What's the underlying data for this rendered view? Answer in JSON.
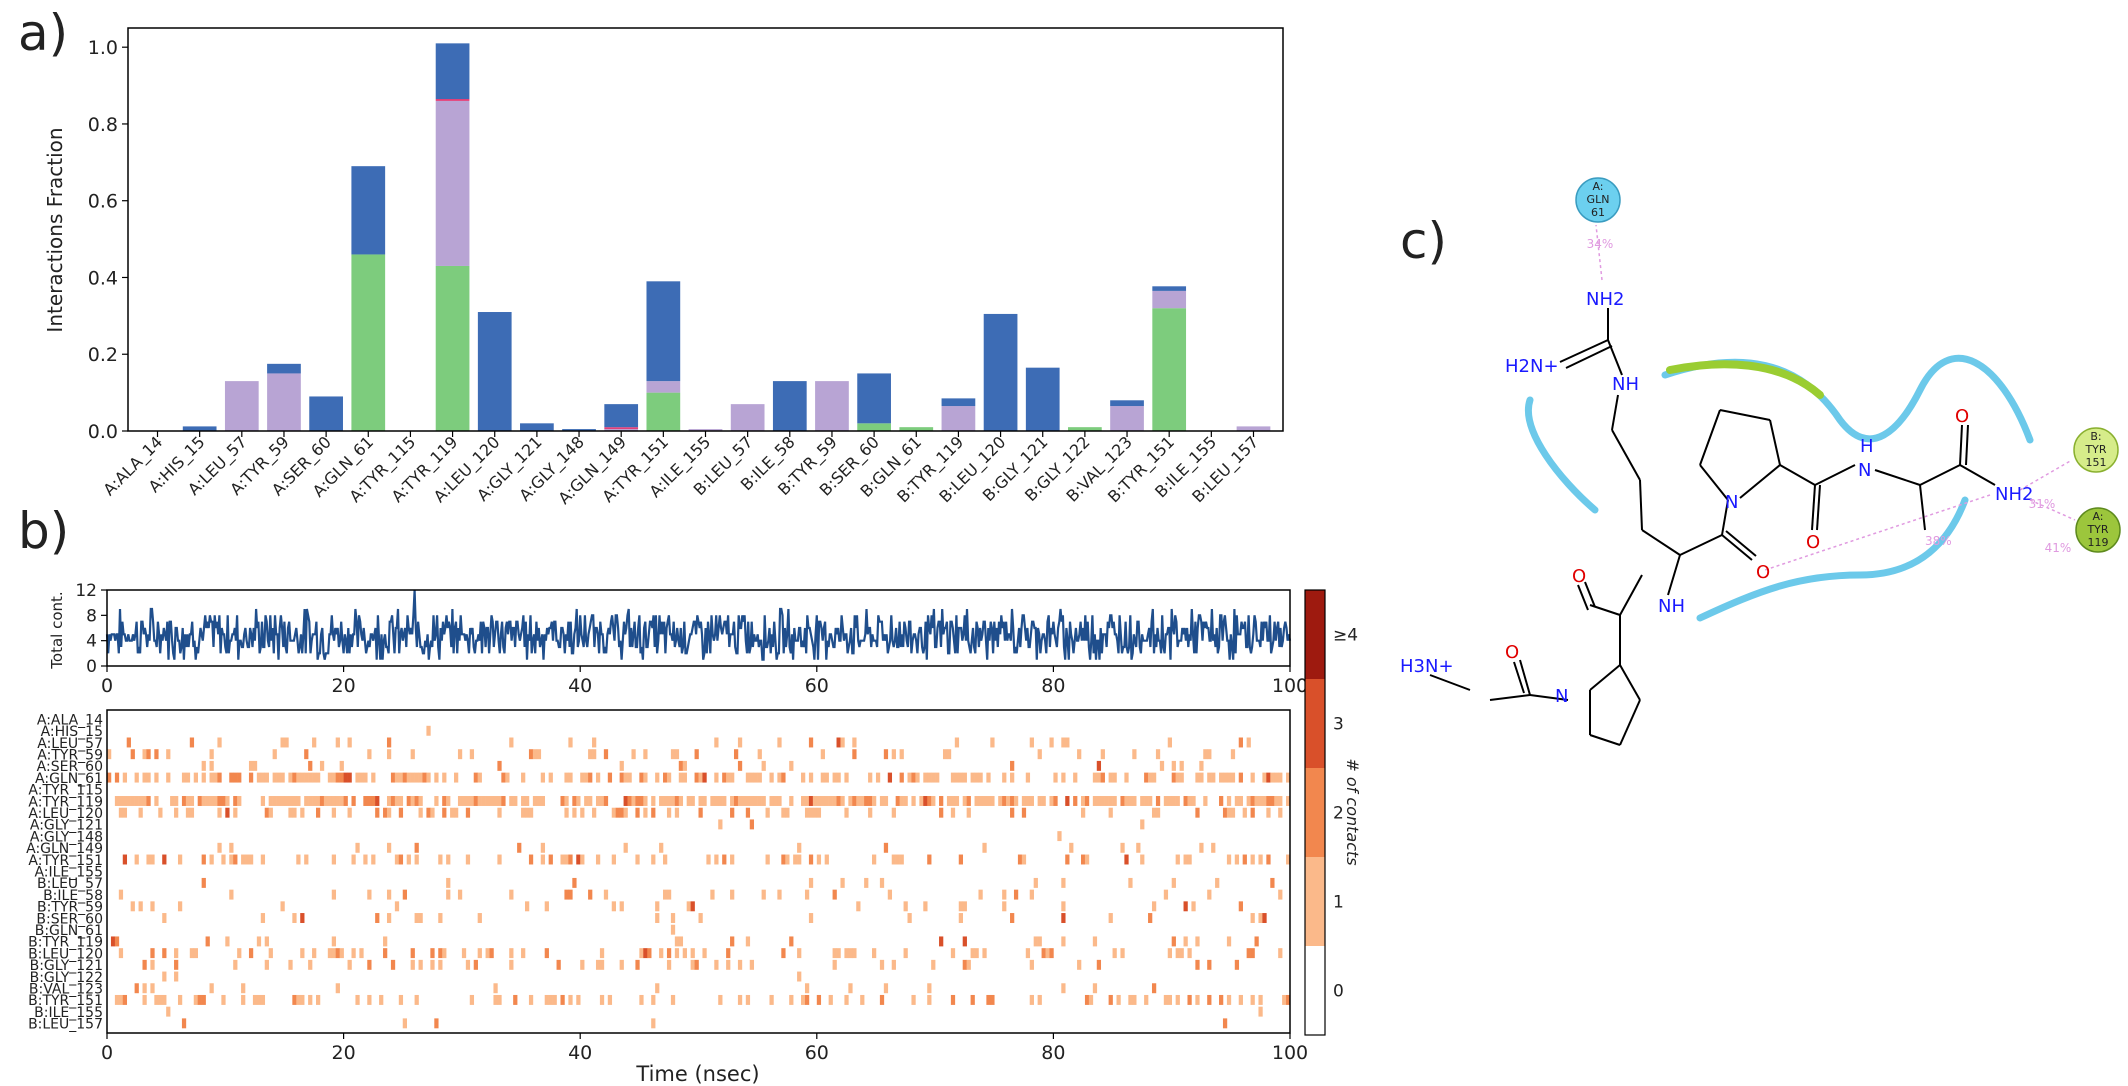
{
  "panels": {
    "a": "a)",
    "b": "b)",
    "c": "c)"
  },
  "chart_data": [
    {
      "type": "bar",
      "ylabel": "Interactions Fraction",
      "ylim": [
        0,
        1.05
      ],
      "yticks": [
        "0.0",
        "0.2",
        "0.4",
        "0.6",
        "0.8",
        "1.0"
      ],
      "categories": [
        "A:ALA_14",
        "A:HIS_15",
        "A:LEU_57",
        "A:TYR_59",
        "A:SER_60",
        "A:GLN_61",
        "A:TYR_115",
        "A:TYR_119",
        "A:LEU_120",
        "A:GLY_121",
        "A:GLY_148",
        "A:GLN_149",
        "A:TYR_151",
        "A:ILE_155",
        "B:LEU_57",
        "B:ILE_58",
        "B:TYR_59",
        "B:SER_60",
        "B:GLN_61",
        "B:TYR_119",
        "B:LEU_120",
        "B:GLY_121",
        "B:GLY_122",
        "B:VAL_123",
        "B:TYR_151",
        "B:ILE_155",
        "B:LEU_157"
      ],
      "stacked": true,
      "series": [
        {
          "color": "#7dcc7d",
          "values": [
            0,
            0,
            0,
            0,
            0,
            0.46,
            0,
            0.43,
            0,
            0,
            0,
            0,
            0.1,
            0,
            0,
            0,
            0,
            0.02,
            0.01,
            0,
            0,
            0,
            0.01,
            0,
            0.32,
            0,
            0
          ]
        },
        {
          "color": "#b8a4d4",
          "values": [
            0,
            0,
            0.13,
            0.15,
            0,
            0,
            0,
            0.43,
            0,
            0,
            0,
            0.005,
            0.03,
            0.005,
            0.07,
            0,
            0.13,
            0,
            0,
            0.065,
            0,
            0,
            0,
            0.065,
            0.045,
            0,
            0.012
          ]
        },
        {
          "color": "#e0407a",
          "values": [
            0,
            0,
            0,
            0,
            0,
            0,
            0,
            0.005,
            0,
            0,
            0,
            0.005,
            0,
            0,
            0,
            0,
            0,
            0,
            0,
            0,
            0,
            0,
            0,
            0,
            0,
            0,
            0
          ]
        },
        {
          "color": "#3d6cb5",
          "values": [
            0,
            0.012,
            0,
            0.025,
            0.09,
            0.23,
            0,
            0.145,
            0.31,
            0.02,
            0.005,
            0.06,
            0.26,
            0,
            0,
            0.13,
            0,
            0.13,
            0,
            0.02,
            0.305,
            0.165,
            0,
            0.015,
            0.012,
            0,
            0
          ]
        }
      ]
    },
    {
      "type": "line",
      "ylabel": "Total cont.",
      "xlim": [
        0,
        100
      ],
      "ylim": [
        0,
        12
      ],
      "yticks": [
        "0",
        "4",
        "8",
        "12"
      ],
      "xticks": [
        "0",
        "20",
        "40",
        "60",
        "80",
        "100"
      ],
      "color": "#1f4e8c",
      "mean": 5,
      "min": 0,
      "max": 12
    },
    {
      "type": "heatmap",
      "xlabel": "Time (nsec)",
      "xlim": [
        0,
        100
      ],
      "xticks": [
        "0",
        "20",
        "40",
        "60",
        "80",
        "100"
      ],
      "rows": [
        "A:ALA_14",
        "A:HIS_15",
        "A:LEU_57",
        "A:TYR_59",
        "A:SER_60",
        "A:GLN_61",
        "A:TYR_115",
        "A:TYR_119",
        "A:LEU_120",
        "A:GLY_121",
        "A:GLY_148",
        "A:GLN_149",
        "A:TYR_151",
        "A:ILE_155",
        "B:LEU_57",
        "B:ILE_58",
        "B:TYR_59",
        "B:SER_60",
        "B:GLN_61",
        "B:TYR_119",
        "B:LEU_120",
        "B:GLY_121",
        "B:GLY_122",
        "B:VAL_123",
        "B:TYR_151",
        "B:ILE_155",
        "B:LEU_157"
      ],
      "row_density": [
        0,
        0.01,
        0.13,
        0.17,
        0.09,
        0.69,
        0,
        1.0,
        0.31,
        0.02,
        0.005,
        0.07,
        0.39,
        0.005,
        0.07,
        0.13,
        0.13,
        0.15,
        0.01,
        0.085,
        0.3,
        0.165,
        0.01,
        0.08,
        0.375,
        0.005,
        0.012
      ],
      "colorbar": {
        "label": "# of contacts",
        "ticks": [
          "0",
          "1",
          "2",
          "3",
          "≥4"
        ],
        "colors": [
          "#ffffff",
          "#fbb98a",
          "#f2874e",
          "#d9502a",
          "#9e1a0f"
        ]
      }
    }
  ],
  "molecule": {
    "atoms": {
      "nh2_top": "NH2",
      "h2n_plus": "H2N+",
      "nh_guan": "NH",
      "n_pro1": "N",
      "nh_amide1": "NH",
      "n_pro2": "N",
      "h3n_plus": "H3N+",
      "nh_ala": "H",
      "n_ala": "N",
      "nh2_term": "NH2",
      "o1": "O",
      "o2": "O",
      "o3": "O",
      "o4": "O",
      "o5": "O"
    },
    "residues": [
      {
        "chain": "A:",
        "name": "GLN",
        "num": "61",
        "pct": "34%"
      },
      {
        "chain": "B:",
        "name": "TYR",
        "num": "151",
        "pct": "31%"
      },
      {
        "chain": "A:",
        "name": "TYR",
        "num": "119",
        "pct": "41%"
      }
    ],
    "extra_pct": "38%"
  }
}
